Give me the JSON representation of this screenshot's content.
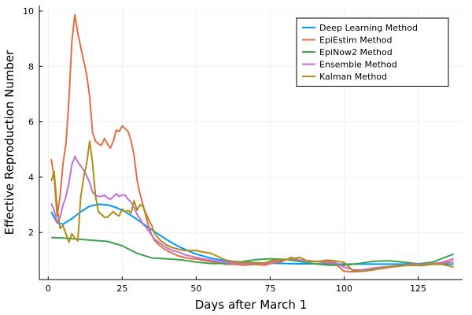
{
  "chart_data": {
    "type": "line",
    "xlabel": "Days after March 1",
    "ylabel": "Effective Reproduction Number",
    "xlim": [
      -3,
      140
    ],
    "ylim": [
      0.3,
      10.2
    ],
    "xticks": [
      0,
      25,
      50,
      75,
      100,
      125
    ],
    "yticks": [
      2,
      4,
      6,
      8,
      10
    ],
    "grid": true,
    "legend_position": "top-right",
    "series": [
      {
        "name": "Deep Learning Method",
        "color": "#009AFA",
        "x": [
          1,
          3,
          5,
          8,
          11,
          14,
          17,
          20,
          23,
          26,
          29,
          32,
          35,
          38,
          41,
          44,
          47,
          50,
          55,
          60,
          65,
          70,
          75,
          80,
          85,
          90,
          95,
          100,
          105,
          110,
          115,
          120,
          125,
          130,
          134,
          137
        ],
        "y": [
          2.75,
          2.35,
          2.3,
          2.5,
          2.75,
          2.95,
          3.02,
          3.0,
          2.9,
          2.75,
          2.55,
          2.32,
          2.1,
          1.88,
          1.68,
          1.5,
          1.35,
          1.22,
          1.07,
          0.98,
          0.94,
          0.91,
          0.89,
          0.88,
          0.87,
          0.87,
          0.86,
          0.86,
          0.86,
          0.86,
          0.86,
          0.86,
          0.86,
          0.86,
          0.86,
          0.86
        ]
      },
      {
        "name": "EpiEstim Method",
        "color": "#E36F47",
        "x": [
          1,
          2,
          3,
          4,
          5,
          6,
          7,
          8,
          9,
          10,
          11,
          12,
          13,
          14,
          15,
          16,
          17,
          18,
          19,
          20,
          21,
          22,
          23,
          24,
          25,
          26,
          27,
          28,
          29,
          30,
          31,
          32,
          33,
          34,
          35,
          36,
          38,
          40,
          42,
          44,
          46,
          48,
          50,
          52,
          55,
          58,
          60,
          63,
          66,
          70,
          73,
          76,
          79,
          82,
          85,
          88,
          91,
          94,
          97,
          100,
          103,
          106,
          110,
          113,
          116,
          120,
          123,
          126,
          130,
          133,
          137
        ],
        "y": [
          4.65,
          4.0,
          2.6,
          3.3,
          4.5,
          5.2,
          6.8,
          8.9,
          9.87,
          9.2,
          8.7,
          8.2,
          7.7,
          6.9,
          5.6,
          5.3,
          5.2,
          5.15,
          5.4,
          5.2,
          5.05,
          5.3,
          5.7,
          5.65,
          5.85,
          5.75,
          5.65,
          5.3,
          4.8,
          3.9,
          3.4,
          3.0,
          2.6,
          2.2,
          1.9,
          1.7,
          1.5,
          1.35,
          1.25,
          1.15,
          1.1,
          1.05,
          1.05,
          1.0,
          0.95,
          0.9,
          0.85,
          0.85,
          0.82,
          0.85,
          0.82,
          0.9,
          0.95,
          1.1,
          1.0,
          0.98,
          0.95,
          0.9,
          0.88,
          0.6,
          0.58,
          0.6,
          0.68,
          0.7,
          0.75,
          0.8,
          0.85,
          0.82,
          0.85,
          0.88,
          0.95
        ]
      },
      {
        "name": "EpiNow2 Method",
        "color": "#3DA44D",
        "x": [
          1,
          5,
          10,
          15,
          20,
          25,
          30,
          35,
          40,
          45,
          50,
          55,
          60,
          65,
          70,
          75,
          80,
          85,
          90,
          95,
          100,
          105,
          110,
          115,
          120,
          125,
          130,
          134,
          137
        ],
        "y": [
          1.82,
          1.8,
          1.76,
          1.72,
          1.68,
          1.52,
          1.25,
          1.08,
          1.05,
          1.01,
          0.93,
          0.88,
          0.88,
          0.94,
          1.02,
          1.05,
          1.03,
          0.95,
          0.87,
          0.82,
          0.82,
          0.88,
          0.96,
          0.98,
          0.93,
          0.87,
          0.93,
          1.1,
          1.22
        ]
      },
      {
        "name": "Ensemble Method",
        "color": "#C271D2",
        "x": [
          1,
          2,
          3,
          4,
          5,
          6,
          7,
          8,
          9,
          10,
          11,
          12,
          13,
          14,
          15,
          16,
          17,
          18,
          19,
          20,
          21,
          22,
          23,
          24,
          25,
          26,
          27,
          28,
          29,
          30,
          31,
          32,
          33,
          34,
          35,
          36,
          38,
          40,
          42,
          44,
          46,
          48,
          50,
          52,
          55,
          58,
          60,
          63,
          66,
          70,
          73,
          76,
          79,
          82,
          85,
          88,
          91,
          94,
          97,
          100,
          103,
          106,
          110,
          113,
          116,
          120,
          123,
          126,
          130,
          133,
          137
        ],
        "y": [
          3.05,
          2.8,
          2.35,
          2.55,
          3.0,
          3.3,
          3.8,
          4.45,
          4.75,
          4.55,
          4.4,
          4.25,
          4.05,
          3.8,
          3.45,
          3.35,
          3.3,
          3.3,
          3.35,
          3.25,
          3.2,
          3.3,
          3.4,
          3.3,
          3.35,
          3.35,
          3.2,
          3.1,
          2.9,
          2.65,
          2.5,
          2.3,
          2.2,
          2.05,
          1.9,
          1.75,
          1.6,
          1.45,
          1.35,
          1.3,
          1.2,
          1.15,
          1.1,
          1.05,
          1.0,
          0.95,
          0.92,
          0.9,
          0.88,
          0.9,
          0.88,
          0.95,
          1.0,
          1.05,
          1.0,
          0.98,
          0.95,
          0.95,
          0.92,
          0.75,
          0.65,
          0.65,
          0.72,
          0.75,
          0.78,
          0.82,
          0.86,
          0.84,
          0.88,
          0.92,
          1.05
        ]
      },
      {
        "name": "Kalman Method",
        "color": "#AC8E18",
        "x": [
          1,
          2,
          3,
          4,
          5,
          6,
          7,
          8,
          9,
          10,
          11,
          12,
          13,
          14,
          15,
          16,
          17,
          18,
          19,
          20,
          21,
          22,
          23,
          24,
          25,
          26,
          27,
          28,
          29,
          30,
          31,
          32,
          33,
          34,
          35,
          36,
          38,
          40,
          42,
          44,
          46,
          48,
          50,
          52,
          55,
          58,
          60,
          63,
          66,
          70,
          73,
          76,
          79,
          82,
          85,
          88,
          91,
          94,
          97,
          100,
          103,
          106,
          110,
          113,
          116,
          120,
          123,
          126,
          130,
          133,
          137
        ],
        "y": [
          3.85,
          4.2,
          2.9,
          2.15,
          2.25,
          1.95,
          1.65,
          1.95,
          1.8,
          1.7,
          3.3,
          4.0,
          4.5,
          5.3,
          4.5,
          3.3,
          2.75,
          2.65,
          2.55,
          2.55,
          2.65,
          2.75,
          2.65,
          2.6,
          2.85,
          2.75,
          2.8,
          2.7,
          3.15,
          2.8,
          3.0,
          2.95,
          2.7,
          2.45,
          2.25,
          1.95,
          1.7,
          1.55,
          1.45,
          1.4,
          1.35,
          1.35,
          1.35,
          1.3,
          1.25,
          1.1,
          1.0,
          0.95,
          0.92,
          0.9,
          0.9,
          1.0,
          1.0,
          1.05,
          1.1,
          0.95,
          0.95,
          1.0,
          0.98,
          0.92,
          0.62,
          0.6,
          0.65,
          0.72,
          0.78,
          0.8,
          0.82,
          0.8,
          0.85,
          0.85,
          0.75
        ]
      }
    ]
  }
}
